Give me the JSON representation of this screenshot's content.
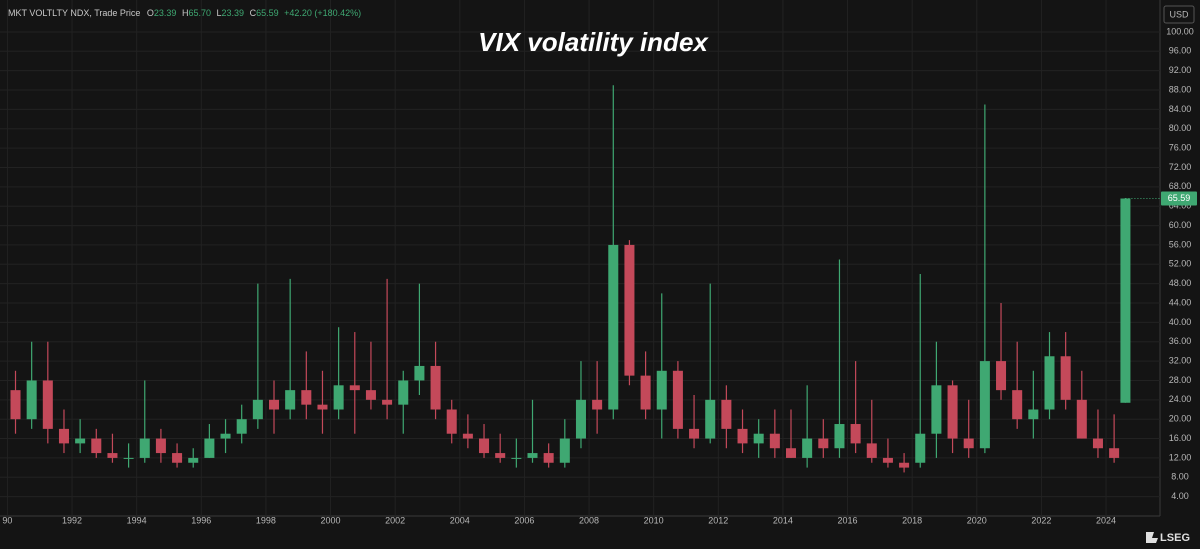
{
  "chart_data": {
    "type": "candlestick",
    "title": "VIX volatility index",
    "header": {
      "symbol": "MKT VOLTLTY NDX, Trade Price",
      "o_label": "O",
      "o": "23.39",
      "h_label": "H",
      "h": "65.70",
      "l_label": "L",
      "l": "23.39",
      "c_label": "C",
      "c": "65.59",
      "change": "+42.20 (+180.42%)"
    },
    "currency": "USD",
    "brand": "LSEG",
    "up_color": "#3fa872",
    "down_color": "#c4495a",
    "grid": true,
    "xlim": [
      1989.77,
      2025.67
    ],
    "xticks": [
      {
        "value": 1990,
        "label": "90"
      },
      1992,
      1994,
      1996,
      1998,
      2000,
      2002,
      2004,
      2006,
      2008,
      2010,
      2012,
      2014,
      2016,
      2018,
      2020,
      2022,
      2024
    ],
    "ylim": [
      0,
      106.6
    ],
    "yticks": [
      {
        "value": 4,
        "label": "4.00"
      },
      {
        "value": 8,
        "label": "8.00"
      },
      {
        "value": 12,
        "label": "12.00"
      },
      {
        "value": 16,
        "label": "16.00"
      },
      {
        "value": 20,
        "label": "20.00"
      },
      {
        "value": 24,
        "label": "24.00"
      },
      {
        "value": 28,
        "label": "28.00"
      },
      {
        "value": 32,
        "label": "32.00"
      },
      {
        "value": 36,
        "label": "36.00"
      },
      {
        "value": 40,
        "label": "40.00"
      },
      {
        "value": 44,
        "label": "44.00"
      },
      {
        "value": 48,
        "label": "48.00"
      },
      {
        "value": 52,
        "label": "52.00"
      },
      {
        "value": 56,
        "label": "56.00"
      },
      {
        "value": 60,
        "label": "60.00"
      },
      {
        "value": 64,
        "label": "64.00"
      },
      {
        "value": 68,
        "label": "68.00"
      },
      {
        "value": 72,
        "label": "72.00"
      },
      {
        "value": 76,
        "label": "76.00"
      },
      {
        "value": 80,
        "label": "80.00"
      },
      {
        "value": 84,
        "label": "84.00"
      },
      {
        "value": 88,
        "label": "88.00"
      },
      {
        "value": 92,
        "label": "92.00"
      },
      {
        "value": 96,
        "label": "96.00"
      },
      {
        "value": 100,
        "label": "100.00"
      }
    ],
    "last_close": 65.59,
    "x": [
      1990.25,
      1990.75,
      1991.25,
      1991.75,
      1992.25,
      1992.75,
      1993.25,
      1993.75,
      1994.25,
      1994.75,
      1995.25,
      1995.75,
      1996.25,
      1996.75,
      1997.25,
      1997.75,
      1998.25,
      1998.75,
      1999.25,
      1999.75,
      2000.25,
      2000.75,
      2001.25,
      2001.75,
      2002.25,
      2002.75,
      2003.25,
      2003.75,
      2004.25,
      2004.75,
      2005.25,
      2005.75,
      2006.25,
      2006.75,
      2007.25,
      2007.75,
      2008.25,
      2008.75,
      2009.25,
      2009.75,
      2010.25,
      2010.75,
      2011.25,
      2011.75,
      2012.25,
      2012.75,
      2013.25,
      2013.75,
      2014.25,
      2014.75,
      2015.25,
      2015.75,
      2016.25,
      2016.75,
      2017.25,
      2017.75,
      2018.25,
      2018.75,
      2019.25,
      2019.75,
      2020.25,
      2020.75,
      2021.25,
      2021.75,
      2022.25,
      2022.75,
      2023.25,
      2023.75,
      2024.25,
      2024.6
    ],
    "open": [
      26,
      20,
      28,
      18,
      15,
      16,
      13,
      12,
      12,
      16,
      13,
      11,
      12,
      16,
      17,
      20,
      24,
      22,
      26,
      23,
      22,
      27,
      26,
      24,
      23,
      28,
      31,
      22,
      17,
      16,
      13,
      12,
      12,
      13,
      11,
      16,
      24,
      22,
      56,
      29,
      22,
      30,
      18,
      16,
      24,
      18,
      15,
      17,
      14,
      12,
      16,
      14,
      19,
      15,
      12,
      11,
      11,
      17,
      27,
      16,
      14,
      32,
      26,
      20,
      22,
      33,
      24,
      16,
      14,
      23.39
    ],
    "high": [
      30,
      36,
      36,
      22,
      20,
      18,
      17,
      15,
      28,
      18,
      15,
      14,
      19,
      20,
      23,
      48,
      28,
      49,
      34,
      30,
      39,
      38,
      36,
      49,
      30,
      48,
      36,
      24,
      21,
      19,
      17,
      16,
      24,
      15,
      20,
      32,
      32,
      89,
      57,
      34,
      46,
      32,
      25,
      48,
      27,
      22,
      20,
      22,
      22,
      27,
      20,
      53,
      32,
      24,
      16,
      13,
      50,
      36,
      28,
      24,
      85,
      44,
      36,
      30,
      38,
      38,
      30,
      22,
      21,
      65.7
    ],
    "low": [
      17,
      18,
      15,
      13,
      13,
      12,
      11,
      10,
      11,
      11,
      10,
      10,
      12,
      13,
      15,
      18,
      17,
      20,
      20,
      17,
      20,
      17,
      22,
      20,
      17,
      25,
      20,
      15,
      14,
      12,
      11,
      10,
      11,
      10,
      10,
      14,
      17,
      20,
      27,
      20,
      16,
      16,
      14,
      15,
      14,
      13,
      12,
      12,
      12,
      10,
      12,
      12,
      13,
      11,
      10,
      9,
      10,
      12,
      13,
      12,
      13,
      24,
      18,
      16,
      20,
      22,
      16,
      12,
      11,
      23.39
    ],
    "close": [
      20,
      28,
      18,
      15,
      16,
      13,
      12,
      12,
      16,
      13,
      11,
      12,
      16,
      17,
      20,
      24,
      22,
      26,
      23,
      22,
      27,
      26,
      24,
      23,
      28,
      31,
      22,
      17,
      16,
      13,
      12,
      12,
      13,
      11,
      16,
      24,
      22,
      56,
      29,
      22,
      30,
      18,
      16,
      24,
      18,
      15,
      17,
      14,
      12,
      16,
      14,
      19,
      15,
      12,
      11,
      10,
      17,
      27,
      16,
      14,
      32,
      26,
      20,
      22,
      33,
      24,
      16,
      14,
      12,
      65.59
    ]
  }
}
